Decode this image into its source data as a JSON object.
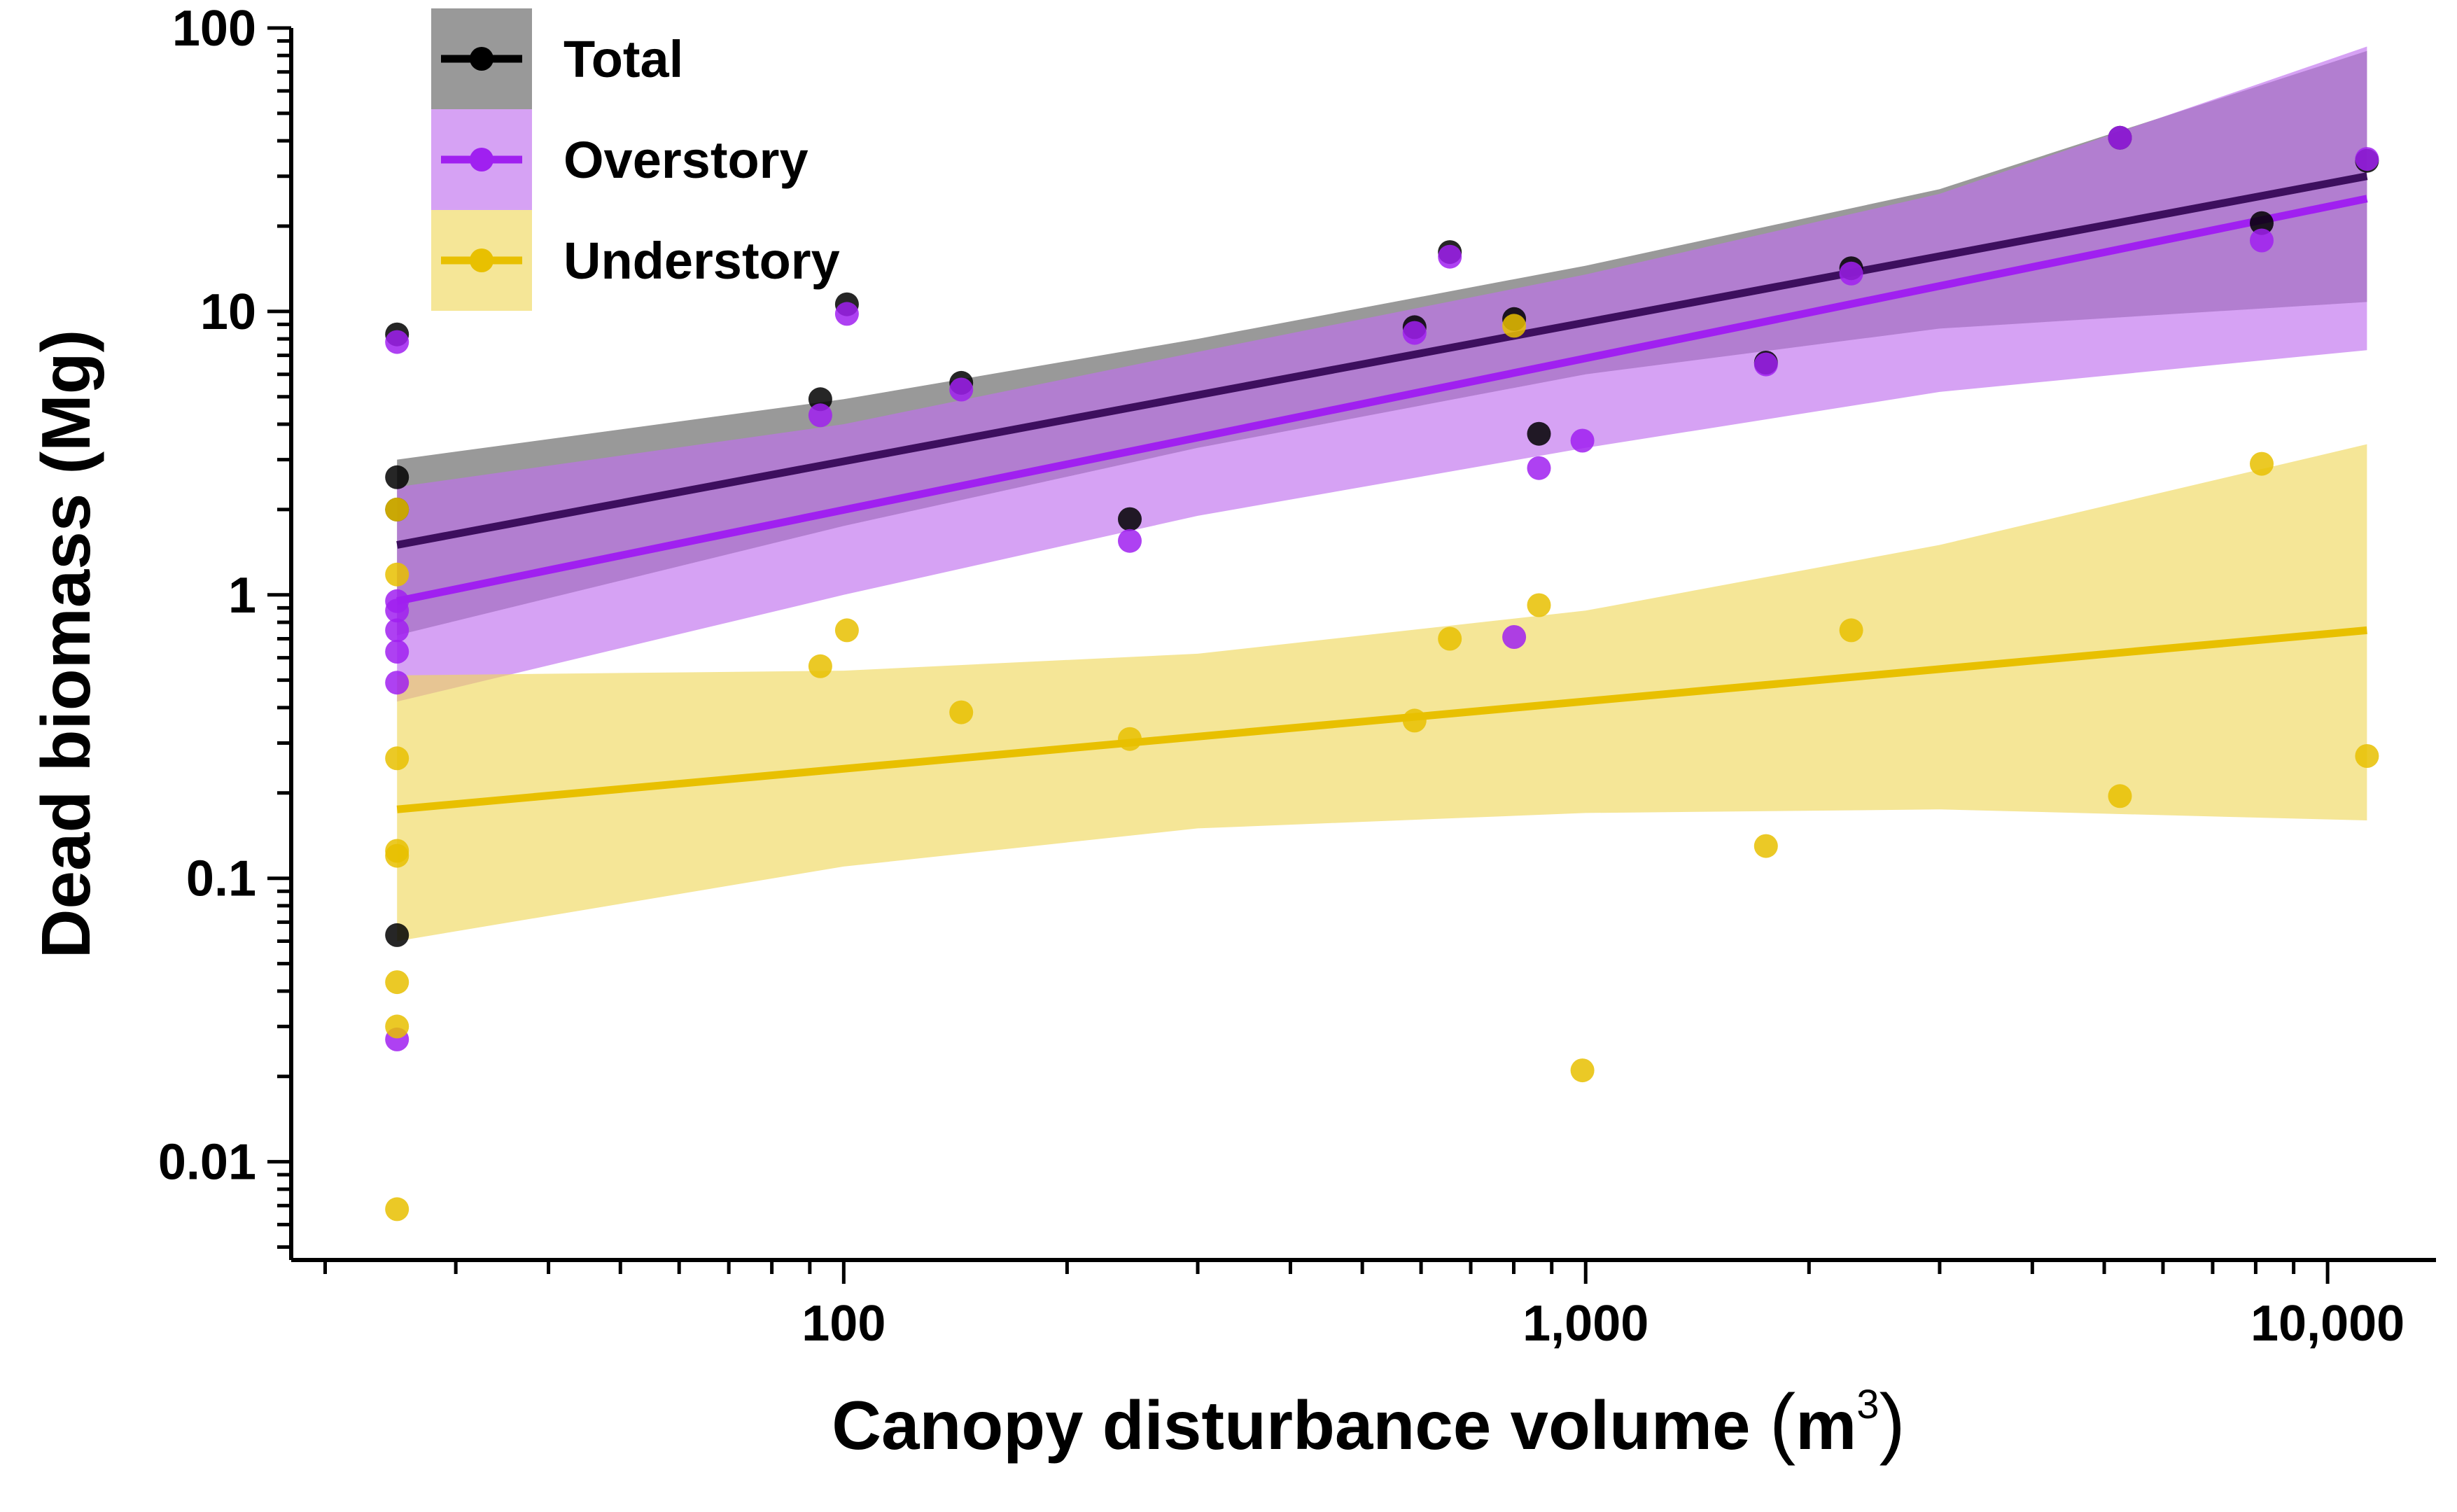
{
  "chart_data": {
    "type": "scatter",
    "xlabel": "Canopy disturbance volume",
    "xlabel_unit": "m",
    "xlabel_unit_exp": "3",
    "ylabel": "Dead biomass (Mg)",
    "x_scale": "log",
    "y_scale": "log",
    "xlim": [
      18,
      14000
    ],
    "ylim": [
      0.0045,
      100
    ],
    "x_ticks": [
      {
        "value": 100,
        "label": "100"
      },
      {
        "value": 1000,
        "label": "1,000"
      },
      {
        "value": 10000,
        "label": "10,000"
      }
    ],
    "y_ticks": [
      {
        "value": 0.01,
        "label": "0.01"
      },
      {
        "value": 0.1,
        "label": "0.1"
      },
      {
        "value": 1,
        "label": "1"
      },
      {
        "value": 10,
        "label": "10"
      },
      {
        "value": 100,
        "label": "100"
      }
    ],
    "grid": false,
    "legend_position": "top-left",
    "series": [
      {
        "name": "Total",
        "color": "#000000",
        "line_color": "#3d0f5e",
        "band_color": "#808080",
        "points": [
          [
            25,
            8.3
          ],
          [
            25,
            2.6
          ],
          [
            25,
            2.0
          ],
          [
            25,
            0.063
          ],
          [
            93,
            4.9
          ],
          [
            101,
            10.6
          ],
          [
            144,
            5.6
          ],
          [
            243,
            1.85
          ],
          [
            588,
            8.8
          ],
          [
            656,
            16.2
          ],
          [
            801,
            9.4
          ],
          [
            865,
            3.7
          ],
          [
            1750,
            6.6
          ],
          [
            2280,
            14.2
          ],
          [
            5250,
            41
          ],
          [
            8150,
            20.5
          ],
          [
            11300,
            34
          ]
        ],
        "fit": [
          [
            25,
            1.5
          ],
          [
            11300,
            30
          ]
        ],
        "band_upper": [
          [
            25,
            3.0
          ],
          [
            100,
            4.9
          ],
          [
            300,
            8.0
          ],
          [
            1000,
            14.5
          ],
          [
            3000,
            27
          ],
          [
            11300,
            83
          ]
        ],
        "band_lower": [
          [
            25,
            0.72
          ],
          [
            100,
            1.75
          ],
          [
            300,
            3.3
          ],
          [
            1000,
            6.0
          ],
          [
            3000,
            8.7
          ],
          [
            11300,
            10.8
          ]
        ]
      },
      {
        "name": "Overstory",
        "color": "#a020f0",
        "line_color": "#a020f0",
        "band_color": "#c070ee",
        "points": [
          [
            25,
            7.8
          ],
          [
            25,
            0.95
          ],
          [
            25,
            0.88
          ],
          [
            25,
            0.75
          ],
          [
            25,
            0.63
          ],
          [
            25,
            0.49
          ],
          [
            25,
            0.027
          ],
          [
            93,
            4.3
          ],
          [
            101,
            9.8
          ],
          [
            144,
            5.3
          ],
          [
            243,
            1.55
          ],
          [
            588,
            8.4
          ],
          [
            656,
            15.6
          ],
          [
            801,
            0.71
          ],
          [
            865,
            2.8
          ],
          [
            990,
            3.5
          ],
          [
            1750,
            6.5
          ],
          [
            2280,
            13.6
          ],
          [
            5250,
            41
          ],
          [
            8150,
            17.8
          ],
          [
            11300,
            34.5
          ]
        ],
        "fit": [
          [
            25,
            0.95
          ],
          [
            11300,
            25
          ]
        ],
        "band_upper": [
          [
            25,
            2.4
          ],
          [
            100,
            4.0
          ],
          [
            300,
            7.2
          ],
          [
            1000,
            13.5
          ],
          [
            3000,
            26
          ],
          [
            11300,
            86
          ]
        ],
        "band_lower": [
          [
            25,
            0.42
          ],
          [
            100,
            1.0
          ],
          [
            300,
            1.9
          ],
          [
            1000,
            3.3
          ],
          [
            3000,
            5.2
          ],
          [
            11300,
            7.3
          ]
        ]
      },
      {
        "name": "Understory",
        "color": "#e8c000",
        "line_color": "#e8c000",
        "band_color": "#f0d860",
        "points": [
          [
            25,
            2.0
          ],
          [
            25,
            1.18
          ],
          [
            25,
            0.265
          ],
          [
            25,
            0.125
          ],
          [
            25,
            0.12
          ],
          [
            25,
            0.043
          ],
          [
            25,
            0.03
          ],
          [
            25,
            0.0068
          ],
          [
            93,
            0.56
          ],
          [
            101,
            0.75
          ],
          [
            144,
            0.385
          ],
          [
            243,
            0.31
          ],
          [
            588,
            0.36
          ],
          [
            656,
            0.7
          ],
          [
            801,
            8.9
          ],
          [
            865,
            0.92
          ],
          [
            990,
            0.021
          ],
          [
            1750,
            0.13
          ],
          [
            2280,
            0.75
          ],
          [
            5250,
            0.195
          ],
          [
            8150,
            2.9
          ],
          [
            11300,
            0.27
          ]
        ],
        "fit": [
          [
            25,
            0.175
          ],
          [
            11300,
            0.75
          ]
        ],
        "band_upper": [
          [
            25,
            0.52
          ],
          [
            100,
            0.54
          ],
          [
            300,
            0.62
          ],
          [
            1000,
            0.88
          ],
          [
            3000,
            1.5
          ],
          [
            11300,
            3.4
          ]
        ],
        "band_lower": [
          [
            25,
            0.06
          ],
          [
            100,
            0.11
          ],
          [
            300,
            0.15
          ],
          [
            1000,
            0.17
          ],
          [
            3000,
            0.175
          ],
          [
            11300,
            0.16
          ]
        ]
      }
    ]
  }
}
